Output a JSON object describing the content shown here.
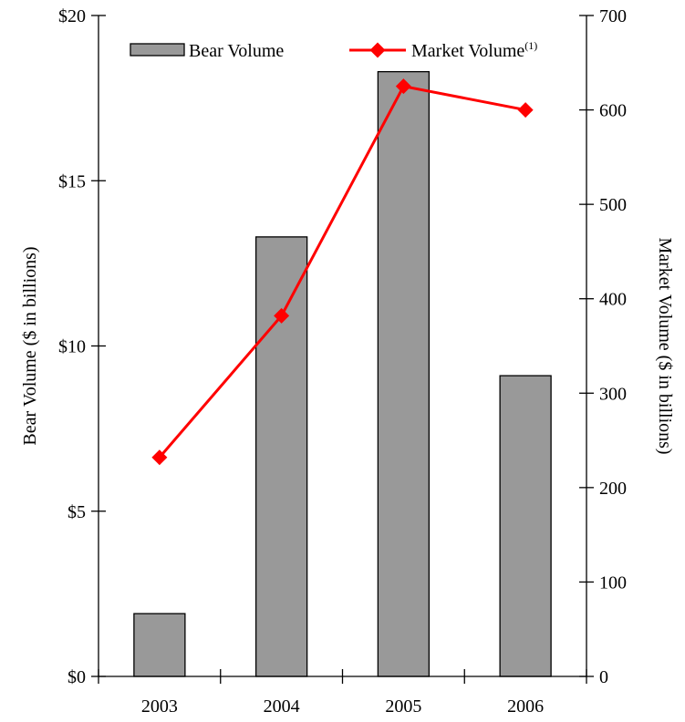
{
  "chart_data": {
    "type": "bar",
    "categories": [
      "2003",
      "2004",
      "2005",
      "2006"
    ],
    "series": [
      {
        "name": "Bear Volume",
        "type": "bar",
        "axis": "left",
        "color": "#999999",
        "values": [
          1.9,
          13.3,
          18.3,
          9.1
        ]
      },
      {
        "name": "Market Volume",
        "name_superscript": "(1)",
        "type": "line",
        "axis": "right",
        "color": "#ff0000",
        "marker": "diamond",
        "values": [
          232,
          382,
          625,
          600
        ]
      }
    ],
    "left_axis": {
      "label": "Bear Volume ($ in billions)",
      "ylim": [
        0,
        20
      ],
      "ticks": [
        0,
        5,
        10,
        15,
        20
      ],
      "tick_labels": [
        "$0",
        "$5",
        "$10",
        "$15",
        "$20"
      ]
    },
    "right_axis": {
      "label": "Market Volume ($ in billions)",
      "ylim": [
        0,
        700
      ],
      "ticks": [
        0,
        100,
        200,
        300,
        400,
        500,
        600,
        700
      ],
      "tick_labels": [
        "0",
        "100",
        "200",
        "300",
        "400",
        "500",
        "600",
        "700"
      ]
    },
    "legend_position": "top",
    "grid": false
  }
}
